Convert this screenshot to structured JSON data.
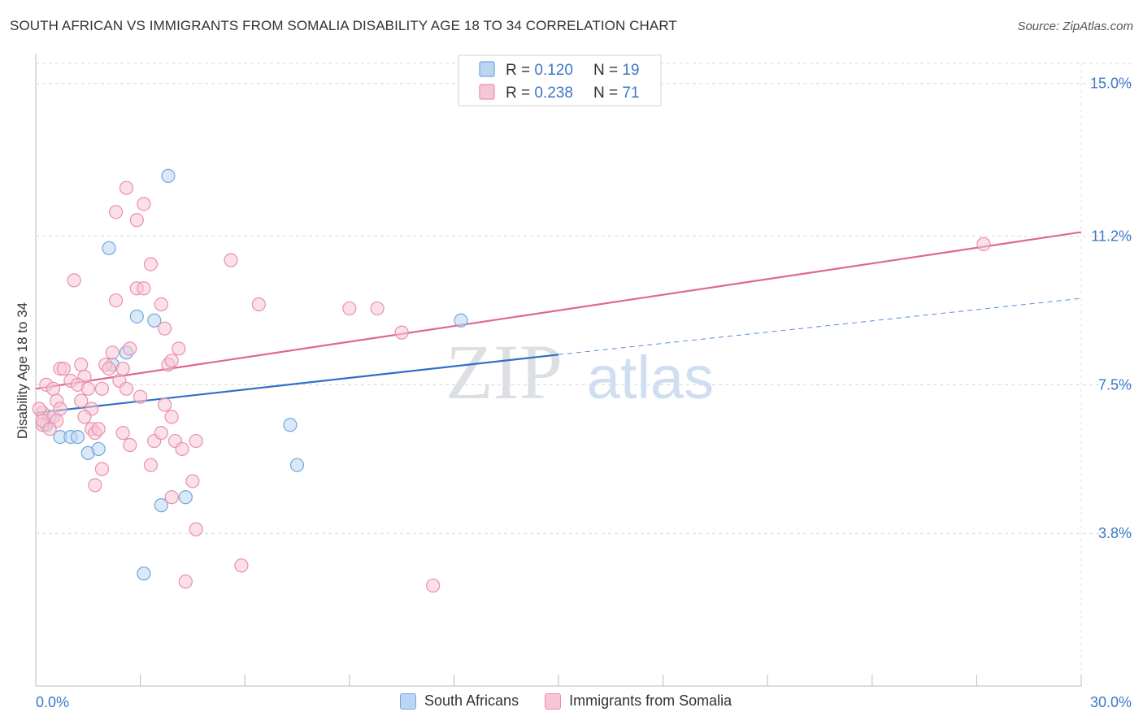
{
  "header": {
    "title": "SOUTH AFRICAN VS IMMIGRANTS FROM SOMALIA DISABILITY AGE 18 TO 34 CORRELATION CHART",
    "source": "Source: ZipAtlas.com"
  },
  "watermark": {
    "zip": "ZIP",
    "atlas": "atlas"
  },
  "colors": {
    "blue": "#6fa8e0",
    "blue_fill": "#bcd5f2",
    "blue_line": "#2e6fca",
    "pink": "#ea8fab",
    "pink_fill": "#f7c6d5",
    "pink_line": "#e0678f",
    "axis_text": "#3d78c8"
  },
  "chart_data": {
    "type": "scatter",
    "title": "SOUTH AFRICAN VS IMMIGRANTS FROM SOMALIA DISABILITY AGE 18 TO 34 CORRELATION CHART",
    "xlabel": "",
    "ylabel": "Disability Age 18 to 34",
    "xlim": [
      0,
      30
    ],
    "ylim": [
      0,
      15.5
    ],
    "x_tick_labels": [
      "0.0%",
      "30.0%"
    ],
    "y_ticks": [
      3.8,
      7.5,
      11.2,
      15.0
    ],
    "y_tick_labels": [
      "3.8%",
      "7.5%",
      "11.2%",
      "15.0%"
    ],
    "grid": true,
    "legend": [
      {
        "r_label": "R = ",
        "r": "0.120",
        "n_label": "N = ",
        "n": "19"
      },
      {
        "r_label": "R = ",
        "r": "0.238",
        "n_label": "N = ",
        "n": "71"
      }
    ],
    "series": [
      {
        "name": "South Africans",
        "color": "blue",
        "trend": {
          "x0": 0,
          "y0": 6.8,
          "x1": 15,
          "y1": 8.25,
          "dash_x1": 30,
          "dash_y1": 9.65
        },
        "points": [
          [
            3.8,
            12.7
          ],
          [
            2.1,
            10.9
          ],
          [
            2.9,
            9.2
          ],
          [
            3.4,
            9.1
          ],
          [
            12.2,
            9.1
          ],
          [
            2.2,
            8.0
          ],
          [
            2.6,
            8.3
          ],
          [
            0.3,
            6.5
          ],
          [
            0.4,
            6.7
          ],
          [
            0.7,
            6.2
          ],
          [
            1.0,
            6.2
          ],
          [
            1.2,
            6.2
          ],
          [
            1.5,
            5.8
          ],
          [
            1.8,
            5.9
          ],
          [
            7.3,
            6.5
          ],
          [
            7.5,
            5.5
          ],
          [
            3.6,
            4.5
          ],
          [
            4.3,
            4.7
          ],
          [
            3.1,
            2.8
          ]
        ]
      },
      {
        "name": "Immigrants from Somalia",
        "color": "pink",
        "trend": {
          "x0": 0,
          "y0": 7.4,
          "x1": 30,
          "y1": 11.3
        },
        "points": [
          [
            2.6,
            12.4
          ],
          [
            3.1,
            12.0
          ],
          [
            2.3,
            11.8
          ],
          [
            2.9,
            11.6
          ],
          [
            27.2,
            11.0
          ],
          [
            5.6,
            10.6
          ],
          [
            3.3,
            10.5
          ],
          [
            1.1,
            10.1
          ],
          [
            2.9,
            9.9
          ],
          [
            3.1,
            9.9
          ],
          [
            2.3,
            9.6
          ],
          [
            3.6,
            9.5
          ],
          [
            6.4,
            9.5
          ],
          [
            9.0,
            9.4
          ],
          [
            9.8,
            9.4
          ],
          [
            3.7,
            8.9
          ],
          [
            10.5,
            8.8
          ],
          [
            4.1,
            8.4
          ],
          [
            2.2,
            8.3
          ],
          [
            2.7,
            8.4
          ],
          [
            3.8,
            8.0
          ],
          [
            3.9,
            8.1
          ],
          [
            1.3,
            8.0
          ],
          [
            2.0,
            8.0
          ],
          [
            0.7,
            7.9
          ],
          [
            0.8,
            7.9
          ],
          [
            2.1,
            7.9
          ],
          [
            1.4,
            7.7
          ],
          [
            2.4,
            7.6
          ],
          [
            0.3,
            7.5
          ],
          [
            0.5,
            7.4
          ],
          [
            1.0,
            7.6
          ],
          [
            1.2,
            7.5
          ],
          [
            1.9,
            7.4
          ],
          [
            2.6,
            7.4
          ],
          [
            0.6,
            7.1
          ],
          [
            1.3,
            7.1
          ],
          [
            3.0,
            7.2
          ],
          [
            0.2,
            6.8
          ],
          [
            0.5,
            6.7
          ],
          [
            0.7,
            6.9
          ],
          [
            1.6,
            6.9
          ],
          [
            3.7,
            7.0
          ],
          [
            1.4,
            6.7
          ],
          [
            3.9,
            6.7
          ],
          [
            0.2,
            6.5
          ],
          [
            0.6,
            6.6
          ],
          [
            1.6,
            6.4
          ],
          [
            1.7,
            6.3
          ],
          [
            2.5,
            6.3
          ],
          [
            1.8,
            6.4
          ],
          [
            3.4,
            6.1
          ],
          [
            3.6,
            6.3
          ],
          [
            4.0,
            6.1
          ],
          [
            4.6,
            6.1
          ],
          [
            2.7,
            6.0
          ],
          [
            4.2,
            5.9
          ],
          [
            1.9,
            5.4
          ],
          [
            3.3,
            5.5
          ],
          [
            4.5,
            5.1
          ],
          [
            1.7,
            5.0
          ],
          [
            3.9,
            4.7
          ],
          [
            4.6,
            3.9
          ],
          [
            5.9,
            3.0
          ],
          [
            4.3,
            2.6
          ],
          [
            11.4,
            2.5
          ],
          [
            0.1,
            6.9
          ],
          [
            0.2,
            6.6
          ],
          [
            0.4,
            6.4
          ],
          [
            2.5,
            7.9
          ],
          [
            1.5,
            7.4
          ]
        ]
      }
    ]
  }
}
